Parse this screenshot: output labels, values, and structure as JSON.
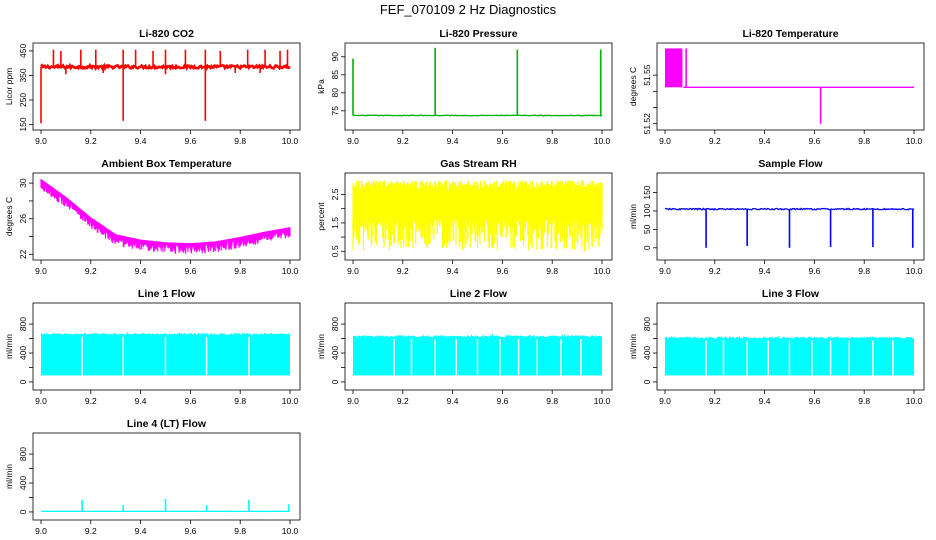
{
  "figure": {
    "title": "FEF_070109  2 Hz Diagnostics"
  },
  "chart_data": [
    {
      "type": "line",
      "title": "Li-820 CO2",
      "xlabel": "",
      "ylabel": "Licor ppm",
      "color": "#ff0000",
      "xlim": [
        9.0,
        10.0
      ],
      "ylim": [
        140,
        470
      ],
      "x_ticks": [
        "9.0",
        "9.2",
        "9.4",
        "9.6",
        "9.8",
        "10.0"
      ],
      "y_ticks": [
        "150",
        "250",
        "350",
        "450"
      ],
      "baseline": 385,
      "noise": 6,
      "up_spikes": [
        [
          9.05,
          455
        ],
        [
          9.08,
          450
        ],
        [
          9.16,
          455
        ],
        [
          9.22,
          455
        ],
        [
          9.33,
          455
        ],
        [
          9.38,
          455
        ],
        [
          9.45,
          450
        ],
        [
          9.5,
          455
        ],
        [
          9.58,
          455
        ],
        [
          9.66,
          455
        ],
        [
          9.72,
          450
        ],
        [
          9.83,
          455
        ],
        [
          9.9,
          455
        ],
        [
          9.96,
          450
        ],
        [
          9.99,
          455
        ]
      ],
      "down_spikes": [
        [
          9.0,
          155
        ],
        [
          9.33,
          165
        ],
        [
          9.66,
          165
        ],
        [
          9.1,
          355
        ],
        [
          9.25,
          360
        ],
        [
          9.5,
          355
        ],
        [
          9.78,
          360
        ],
        [
          9.88,
          360
        ]
      ]
    },
    {
      "type": "line",
      "title": "Li-820 Pressure",
      "xlabel": "",
      "ylabel": "kPa",
      "color": "#00b400",
      "xlim": [
        9.0,
        10.0
      ],
      "ylim": [
        70.5,
        93
      ],
      "x_ticks": [
        "9.0",
        "9.2",
        "9.4",
        "9.6",
        "9.8",
        "10.0"
      ],
      "y_ticks": [
        "75",
        "80",
        "85",
        "90"
      ],
      "baseline": 73.7,
      "noise": 0.1,
      "up_spikes": [
        [
          9.0,
          89.5
        ],
        [
          9.33,
          92.5
        ],
        [
          9.66,
          92
        ],
        [
          9.995,
          92
        ]
      ],
      "down_spikes": []
    },
    {
      "type": "line",
      "title": "Li-820 Temperature",
      "xlabel": "",
      "ylabel": "degrees C",
      "color": "#ff00ff",
      "xlim": [
        9.0,
        10.0
      ],
      "ylim": [
        51.518,
        51.568
      ],
      "x_ticks": [
        "9.0",
        "9.2",
        "9.4",
        "9.6",
        "9.8",
        "10.0"
      ],
      "y_ticks": [
        "51.52",
        "51.55"
      ],
      "y_ticks_full": [
        "51.52",
        "51.53",
        "51.54",
        "51.55"
      ],
      "baseline": 51.5425,
      "noise": 0,
      "oscillation_until": 9.07,
      "oscillation_range": [
        51.5425,
        51.5665
      ],
      "up_spikes": [
        [
          9.085,
          51.5665
        ]
      ],
      "down_spikes": [
        [
          9.625,
          51.52
        ]
      ]
    },
    {
      "type": "line",
      "title": "Ambient Box Temperature",
      "xlabel": "",
      "ylabel": "degrees C",
      "color": "#ff00ff",
      "xlim": [
        9.0,
        10.0
      ],
      "ylim": [
        21.7,
        30.8
      ],
      "x_ticks": [
        "9.0",
        "9.2",
        "9.4",
        "9.6",
        "9.8",
        "10.0"
      ],
      "y_ticks": [
        "22",
        "26",
        "30"
      ],
      "y_ticks_full": [
        "22",
        "24",
        "26",
        "28",
        "30"
      ],
      "curve": [
        [
          9.0,
          30.2
        ],
        [
          9.1,
          28.2
        ],
        [
          9.2,
          25.9
        ],
        [
          9.3,
          24.0
        ],
        [
          9.4,
          23.4
        ],
        [
          9.5,
          23.1
        ],
        [
          9.6,
          23.0
        ],
        [
          9.7,
          23.2
        ],
        [
          9.8,
          23.7
        ],
        [
          9.9,
          24.3
        ],
        [
          10.0,
          24.8
        ]
      ],
      "band": 1.0
    },
    {
      "type": "line",
      "title": "Gas Stream RH",
      "xlabel": "",
      "ylabel": "percent",
      "color": "#ffff00",
      "xlim": [
        9.0,
        10.0
      ],
      "ylim": [
        0.3,
        3.15
      ],
      "x_ticks": [
        "9.0",
        "9.2",
        "9.4",
        "9.6",
        "9.8",
        "10.0"
      ],
      "y_ticks": [
        "0.5",
        "1.5",
        "2.5"
      ],
      "y_ticks_full": [
        "0.5",
        "1.0",
        "1.5",
        "2.0",
        "2.5"
      ],
      "band_low": 1.6,
      "band_high": 2.75,
      "dips_low": 0.5
    },
    {
      "type": "line",
      "title": "Sample Flow",
      "xlabel": "",
      "ylabel": "ml/min",
      "color": "#0000ff",
      "xlim": [
        9.0,
        10.0
      ],
      "ylim": [
        -25,
        195
      ],
      "x_ticks": [
        "9.0",
        "9.2",
        "9.4",
        "9.6",
        "9.8",
        "10.0"
      ],
      "y_ticks": [
        "0",
        "50",
        "100",
        "150"
      ],
      "baseline": 105,
      "noise": 2,
      "up_spikes": [],
      "down_spikes": [
        [
          9.165,
          0
        ],
        [
          9.33,
          5
        ],
        [
          9.5,
          0
        ],
        [
          9.665,
          2
        ],
        [
          9.835,
          2
        ],
        [
          9.995,
          0
        ]
      ]
    },
    {
      "type": "line",
      "title": "Line 1 Flow",
      "xlabel": "",
      "ylabel": "ml/min",
      "color": "#00ffff",
      "xlim": [
        9.0,
        10.0
      ],
      "ylim": [
        -70,
        1050
      ],
      "x_ticks": [
        "9.0",
        "9.2",
        "9.4",
        "9.6",
        "9.8",
        "10.0"
      ],
      "y_ticks": [
        "0",
        "400",
        "800"
      ],
      "y_ticks_full": [
        "0",
        "200",
        "400",
        "600",
        "800"
      ],
      "band_low": 90,
      "band_high": 650,
      "gaps": [
        9.165,
        9.33,
        9.5,
        9.665,
        9.835
      ]
    },
    {
      "type": "line",
      "title": "Line 2 Flow",
      "xlabel": "",
      "ylabel": "ml/min",
      "color": "#00ffff",
      "xlim": [
        9.0,
        10.0
      ],
      "ylim": [
        -70,
        1050
      ],
      "x_ticks": [
        "9.0",
        "9.2",
        "9.4",
        "9.6",
        "9.8",
        "10.0"
      ],
      "y_ticks": [
        "0",
        "400",
        "800"
      ],
      "y_ticks_full": [
        "0",
        "200",
        "400",
        "600",
        "800"
      ],
      "band_low": 90,
      "band_high": 620,
      "gaps": [
        9.165,
        9.235,
        9.33,
        9.415,
        9.5,
        9.59,
        9.665,
        9.74,
        9.835,
        9.915
      ]
    },
    {
      "type": "line",
      "title": "Line 3 Flow",
      "xlabel": "",
      "ylabel": "ml/min",
      "color": "#00ffff",
      "xlim": [
        9.0,
        10.0
      ],
      "ylim": [
        -70,
        1050
      ],
      "x_ticks": [
        "9.0",
        "9.2",
        "9.4",
        "9.6",
        "9.8",
        "10.0"
      ],
      "y_ticks": [
        "0",
        "400",
        "800"
      ],
      "y_ticks_full": [
        "0",
        "200",
        "400",
        "600",
        "800"
      ],
      "band_low": 90,
      "band_high": 600,
      "gaps": [
        9.165,
        9.235,
        9.33,
        9.415,
        9.5,
        9.59,
        9.665,
        9.74,
        9.835,
        9.915
      ]
    },
    {
      "type": "line",
      "title": "Line 4 (LT) Flow",
      "xlabel": "",
      "ylabel": "ml/min",
      "color": "#00ffff",
      "xlim": [
        9.0,
        10.0
      ],
      "ylim": [
        -70,
        1050
      ],
      "x_ticks": [
        "9.0",
        "9.2",
        "9.4",
        "9.6",
        "9.8",
        "10.0"
      ],
      "y_ticks": [
        "0",
        "400",
        "800"
      ],
      "y_ticks_full": [
        "0",
        "200",
        "400",
        "600",
        "800"
      ],
      "baseline": 8,
      "noise": 2,
      "up_spikes": [
        [
          9.165,
          170
        ],
        [
          9.33,
          95
        ],
        [
          9.5,
          180
        ],
        [
          9.665,
          95
        ],
        [
          9.835,
          170
        ],
        [
          9.995,
          105
        ]
      ],
      "down_spikes": []
    }
  ]
}
